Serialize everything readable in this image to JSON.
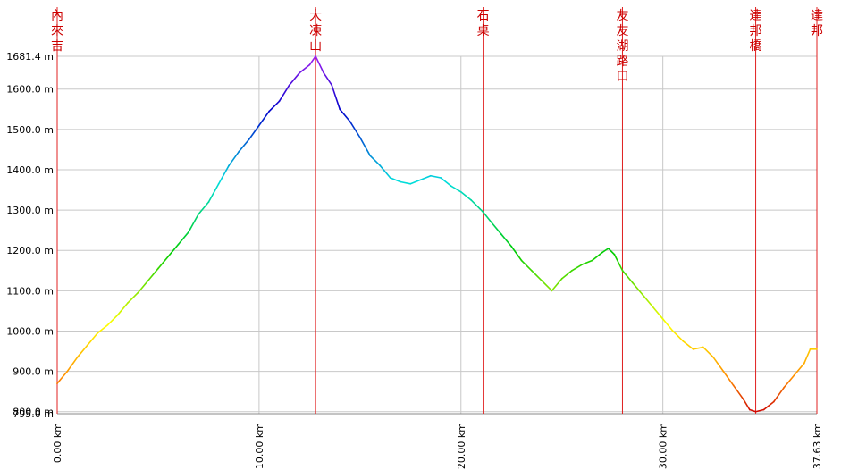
{
  "chart_data": {
    "type": "line",
    "title": "",
    "xlabel": "",
    "ylabel": "",
    "xlim": [
      0,
      37.63
    ],
    "ylim": [
      795.0,
      1681.4
    ],
    "x_ticks": [
      {
        "value": 0,
        "label": "0.00 km"
      },
      {
        "value": 10,
        "label": "10.00 km"
      },
      {
        "value": 20,
        "label": "20.00 km"
      },
      {
        "value": 30,
        "label": "30.00 km"
      },
      {
        "value": 37.63,
        "label": "37.63 km"
      }
    ],
    "y_ticks": [
      {
        "value": 795.0,
        "label": "795.0 m"
      },
      {
        "value": 800,
        "label": "800.0 m"
      },
      {
        "value": 900,
        "label": "900.0 m"
      },
      {
        "value": 1000,
        "label": "1000.0 m"
      },
      {
        "value": 1100,
        "label": "1100.0 m"
      },
      {
        "value": 1200,
        "label": "1200.0 m"
      },
      {
        "value": 1300,
        "label": "1300.0 m"
      },
      {
        "value": 1400,
        "label": "1400.0 m"
      },
      {
        "value": 1500,
        "label": "1500.0 m"
      },
      {
        "value": 1600,
        "label": "1600.0 m"
      },
      {
        "value": 1681.4,
        "label": "1681.4 m"
      }
    ],
    "grid": true,
    "color_scale": {
      "min_color": "#cc0000",
      "max_color": "#a020f0",
      "note_colors": [
        "#cc0000",
        "#ff8c00",
        "#ffff00",
        "#00cc00",
        "#00dddd",
        "#0000cc",
        "#a020f0"
      ]
    },
    "waypoints": [
      {
        "x": 0.0,
        "label": "內來吉"
      },
      {
        "x": 12.8,
        "label": "大凍山"
      },
      {
        "x": 21.1,
        "label": "石桌"
      },
      {
        "x": 28.0,
        "label": "友友湖路口"
      },
      {
        "x": 34.6,
        "label": "達邦橋"
      },
      {
        "x": 37.63,
        "label": "達邦"
      }
    ],
    "series": [
      {
        "x": [
          0.0,
          0.5,
          1.0,
          1.5,
          2.0,
          2.5,
          3.0,
          3.5,
          4.0,
          4.5,
          5.0,
          5.5,
          6.0,
          6.5,
          7.0,
          7.5,
          8.0,
          8.5,
          9.0,
          9.5,
          10.0,
          10.5,
          11.0,
          11.5,
          12.0,
          12.5,
          12.8,
          13.2,
          13.6,
          14.0,
          14.5,
          15.0,
          15.5,
          16.0,
          16.5,
          17.0,
          17.5,
          18.0,
          18.5,
          19.0,
          19.5,
          20.0,
          20.5,
          21.1,
          21.5,
          22.0,
          22.5,
          23.0,
          23.5,
          24.0,
          24.5,
          25.0,
          25.5,
          26.0,
          26.5,
          27.0,
          27.3,
          27.6,
          28.0,
          28.5,
          29.0,
          29.5,
          30.0,
          30.5,
          31.0,
          31.5,
          32.0,
          32.5,
          33.0,
          33.5,
          34.0,
          34.3,
          34.6,
          35.0,
          35.5,
          36.0,
          36.5,
          37.0,
          37.3,
          37.63
        ],
        "y": [
          870,
          900,
          935,
          965,
          995,
          1015,
          1040,
          1070,
          1095,
          1125,
          1155,
          1185,
          1215,
          1245,
          1290,
          1320,
          1365,
          1410,
          1445,
          1475,
          1510,
          1545,
          1570,
          1610,
          1640,
          1660,
          1681.4,
          1640,
          1610,
          1550,
          1520,
          1480,
          1435,
          1410,
          1380,
          1370,
          1365,
          1375,
          1385,
          1380,
          1360,
          1345,
          1325,
          1295,
          1270,
          1240,
          1210,
          1175,
          1150,
          1125,
          1100,
          1130,
          1150,
          1165,
          1175,
          1195,
          1205,
          1190,
          1150,
          1120,
          1090,
          1060,
          1030,
          1000,
          975,
          955,
          960,
          935,
          900,
          865,
          830,
          805,
          800,
          805,
          825,
          860,
          890,
          920,
          955,
          955
        ]
      }
    ]
  }
}
